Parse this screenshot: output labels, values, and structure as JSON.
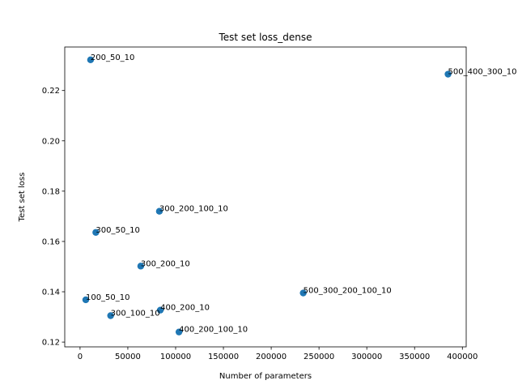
{
  "chart_data": {
    "type": "scatter",
    "title": "Test set loss_dense",
    "xlabel": "Number of parameters",
    "ylabel": "Test set loss",
    "xlim": [
      -16000,
      404000
    ],
    "ylim": [
      0.1181,
      0.2373
    ],
    "xticks": [
      0,
      50000,
      100000,
      150000,
      200000,
      250000,
      300000,
      350000,
      400000
    ],
    "xtick_labels": [
      "0",
      "50000",
      "100000",
      "150000",
      "200000",
      "250000",
      "300000",
      "350000",
      "400000"
    ],
    "yticks": [
      0.12,
      0.14,
      0.16,
      0.18,
      0.2,
      0.22
    ],
    "ytick_labels": [
      "0.12",
      "0.14",
      "0.16",
      "0.18",
      "0.20",
      "0.22"
    ],
    "grid": false,
    "point_color": "#1f77b4",
    "points": [
      {
        "label": "200_50_10",
        "x": 11000,
        "y": 0.2322
      },
      {
        "label": "500_400_300_10",
        "x": 385000,
        "y": 0.2265
      },
      {
        "label": "300_200_100_10",
        "x": 83000,
        "y": 0.172
      },
      {
        "label": "300_50_10",
        "x": 16500,
        "y": 0.1636
      },
      {
        "label": "300_200_10",
        "x": 63500,
        "y": 0.1502
      },
      {
        "label": "500_300_200_100_10",
        "x": 233500,
        "y": 0.1395
      },
      {
        "label": "100_50_10",
        "x": 6000,
        "y": 0.1368
      },
      {
        "label": "400_200_10",
        "x": 84000,
        "y": 0.1327
      },
      {
        "label": "300_100_10",
        "x": 32000,
        "y": 0.1305
      },
      {
        "label": "400_200_100_10",
        "x": 103500,
        "y": 0.124
      }
    ]
  }
}
